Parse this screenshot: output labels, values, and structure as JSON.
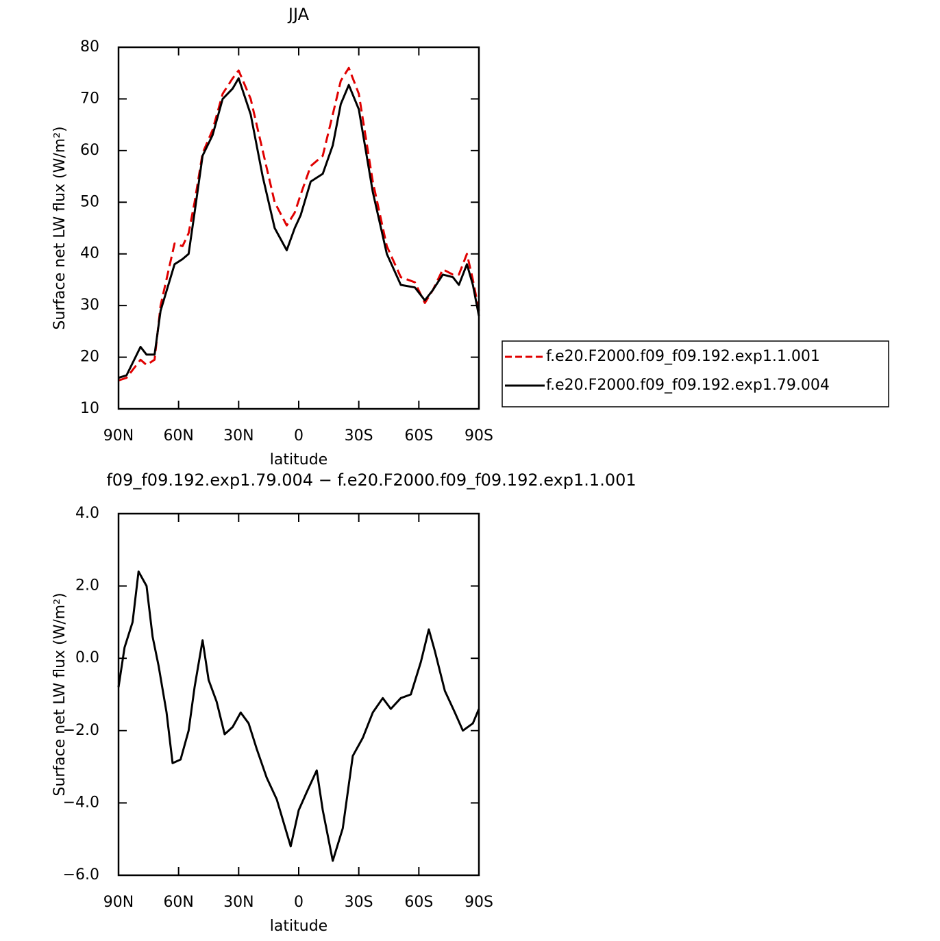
{
  "chart_data": [
    {
      "type": "line",
      "title": "JJA",
      "x_label": "latitude",
      "y_label": "Surface net LW flux (W/m²)",
      "x": [
        90,
        86,
        79,
        76,
        72,
        69,
        62,
        58,
        55,
        52,
        48,
        43,
        38,
        33,
        30,
        24,
        18,
        12,
        6,
        2,
        -1,
        -6,
        -12,
        -17,
        -21,
        -25,
        -30,
        -37,
        -44,
        -51,
        -58,
        -63,
        -67,
        -72,
        -77,
        -80,
        -84,
        -87,
        -90
      ],
      "series": [
        {
          "name": "f.e20.F2000.f09_f09.192.exp1.1.001",
          "color": "#e00000",
          "line_style": "dashed",
          "values": [
            15.5,
            16,
            19.5,
            18.5,
            19.5,
            30,
            42,
            41.5,
            44,
            50,
            59.5,
            64,
            71,
            74,
            75.5,
            70,
            60,
            50,
            45.5,
            48,
            51.5,
            57,
            59,
            67,
            73.5,
            76,
            71,
            54,
            41.5,
            35.5,
            34.5,
            30.5,
            33,
            37,
            36,
            36,
            40,
            35,
            29
          ]
        },
        {
          "name": "f.e20.F2000.f09_f09.192.exp1.79.004",
          "color": "#000000",
          "line_style": "solid",
          "values": [
            16,
            16.5,
            22,
            20.5,
            20.5,
            29,
            38,
            39,
            40,
            48,
            59,
            63,
            70,
            72,
            74,
            67,
            55,
            45,
            40.7,
            45,
            47.5,
            54,
            55.5,
            61,
            69,
            72.7,
            68,
            52,
            40,
            34,
            33.5,
            31,
            33,
            36,
            35.5,
            34,
            38,
            34,
            28
          ]
        }
      ],
      "xlim": [
        90,
        -90
      ],
      "xticks": [
        {
          "value": 90,
          "label": "90N"
        },
        {
          "value": 60,
          "label": "60N"
        },
        {
          "value": 30,
          "label": "30N"
        },
        0,
        {
          "value": -30,
          "label": "30S"
        },
        {
          "value": -60,
          "label": "60S"
        },
        {
          "value": -90,
          "label": "90S"
        }
      ],
      "ylim": [
        10,
        80
      ],
      "yticks": [
        10,
        20,
        30,
        40,
        50,
        60,
        70,
        80
      ],
      "legend": "right"
    },
    {
      "type": "line",
      "title": "f09_f09.192.exp1.79.004 − f.e20.F2000.f09_f09.192.exp1.1.001",
      "x_label": "latitude",
      "y_label": "Surface net LW flux (W/m²)",
      "x": [
        90,
        87,
        83,
        80,
        76,
        73,
        70,
        66,
        63,
        59,
        55,
        52,
        48,
        45,
        41,
        37,
        33,
        29,
        25,
        21,
        16,
        11,
        4,
        0,
        -4,
        -9,
        -12,
        -17,
        -22,
        -27,
        -32,
        -37,
        -42,
        -46,
        -51,
        -56,
        -61,
        -65,
        -68,
        -73,
        -78,
        -82,
        -87,
        -90
      ],
      "values": [
        -0.8,
        0.3,
        1.0,
        2.4,
        2.0,
        0.6,
        -0.2,
        -1.5,
        -2.9,
        -2.8,
        -2.0,
        -0.8,
        0.5,
        -0.6,
        -1.2,
        -2.1,
        -1.9,
        -1.5,
        -1.8,
        -2.5,
        -3.3,
        -3.9,
        -5.2,
        -4.2,
        -3.7,
        -3.1,
        -4.2,
        -5.6,
        -4.7,
        -2.7,
        -2.2,
        -1.5,
        -1.1,
        -1.4,
        -1.1,
        -1.0,
        -0.1,
        0.8,
        0.2,
        -0.9,
        -1.5,
        -2.0,
        -1.8,
        -1.4
      ],
      "color": "#000000",
      "xlim": [
        90,
        -90
      ],
      "xticks": [
        {
          "value": 90,
          "label": "90N"
        },
        {
          "value": 60,
          "label": "60N"
        },
        {
          "value": 30,
          "label": "30N"
        },
        0,
        {
          "value": -30,
          "label": "30S"
        },
        {
          "value": -60,
          "label": "60S"
        },
        {
          "value": -90,
          "label": "90S"
        }
      ],
      "ylim": [
        -6,
        4
      ],
      "yticks": [
        {
          "value": -6,
          "label": "−6.0"
        },
        {
          "value": -4,
          "label": "−4.0"
        },
        {
          "value": -2,
          "label": "−2.0"
        },
        {
          "value": 0,
          "label": "0.0"
        },
        {
          "value": 2,
          "label": "2.0"
        },
        {
          "value": 4,
          "label": "4.0"
        }
      ]
    }
  ]
}
